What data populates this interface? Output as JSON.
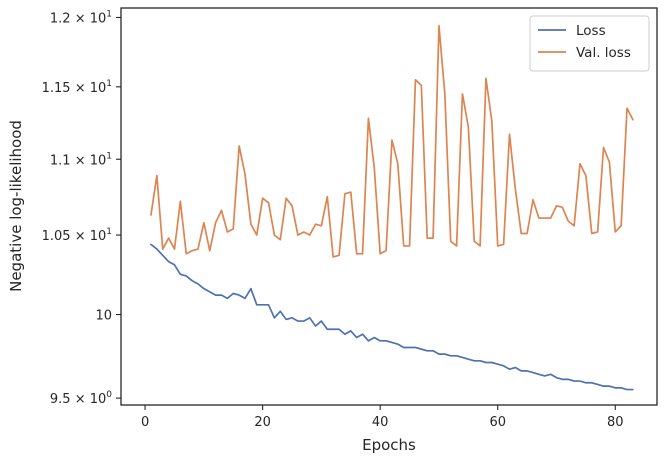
{
  "chart_data": {
    "type": "line",
    "xlabel": "Epochs",
    "ylabel": "Negative log-likelihood",
    "xlim": [
      -4.1,
      87.1
    ],
    "ylim": [
      9.46,
      12.07
    ],
    "yscale": "log",
    "grid": false,
    "legend": "top-right",
    "x_ticks": [
      {
        "value": 0,
        "label": "0"
      },
      {
        "value": 20,
        "label": "20"
      },
      {
        "value": 40,
        "label": "40"
      },
      {
        "value": 60,
        "label": "60"
      },
      {
        "value": 80,
        "label": "80"
      }
    ],
    "y_ticks": [
      {
        "value": 9.5,
        "base": "9.5",
        "exp": "0"
      },
      {
        "value": 10.0,
        "base": "10",
        "exp": "1"
      },
      {
        "value": 10.5,
        "base": "1.05",
        "exp": "1"
      },
      {
        "value": 11.0,
        "base": "1.1",
        "exp": "1"
      },
      {
        "value": 11.5,
        "base": "1.15",
        "exp": "1"
      },
      {
        "value": 12.0,
        "base": "1.2",
        "exp": "1"
      }
    ],
    "x": [
      1,
      2,
      3,
      4,
      5,
      6,
      7,
      8,
      9,
      10,
      11,
      12,
      13,
      14,
      15,
      16,
      17,
      18,
      19,
      20,
      21,
      22,
      23,
      24,
      25,
      26,
      27,
      28,
      29,
      30,
      31,
      32,
      33,
      34,
      35,
      36,
      37,
      38,
      39,
      40,
      41,
      42,
      43,
      44,
      45,
      46,
      47,
      48,
      49,
      50,
      51,
      52,
      53,
      54,
      55,
      56,
      57,
      58,
      59,
      60,
      61,
      62,
      63,
      64,
      65,
      66,
      67,
      68,
      69,
      70,
      71,
      72,
      73,
      74,
      75,
      76,
      77,
      78,
      79,
      80,
      81,
      82,
      83
    ],
    "series": [
      {
        "name": "Loss",
        "color": "#4c72b0",
        "values": [
          10.44,
          10.41,
          10.37,
          10.33,
          10.31,
          10.25,
          10.24,
          10.21,
          10.19,
          10.16,
          10.14,
          10.12,
          10.12,
          10.1,
          10.13,
          10.12,
          10.1,
          10.16,
          10.06,
          10.06,
          10.06,
          9.98,
          10.02,
          9.97,
          9.98,
          9.96,
          9.96,
          9.98,
          9.93,
          9.96,
          9.91,
          9.91,
          9.91,
          9.88,
          9.9,
          9.86,
          9.88,
          9.84,
          9.86,
          9.84,
          9.84,
          9.83,
          9.82,
          9.8,
          9.8,
          9.8,
          9.79,
          9.78,
          9.78,
          9.76,
          9.76,
          9.75,
          9.75,
          9.74,
          9.73,
          9.72,
          9.72,
          9.71,
          9.71,
          9.7,
          9.69,
          9.67,
          9.68,
          9.66,
          9.66,
          9.65,
          9.64,
          9.63,
          9.64,
          9.62,
          9.61,
          9.61,
          9.6,
          9.6,
          9.59,
          9.59,
          9.58,
          9.57,
          9.57,
          9.56,
          9.56,
          9.55,
          9.55
        ]
      },
      {
        "name": "Val. loss",
        "color": "#dd8452",
        "values": [
          10.63,
          10.89,
          10.41,
          10.48,
          10.41,
          10.72,
          10.38,
          10.4,
          10.41,
          10.58,
          10.4,
          10.58,
          10.66,
          10.52,
          10.54,
          11.09,
          10.9,
          10.57,
          10.5,
          10.74,
          10.71,
          10.5,
          10.47,
          10.74,
          10.69,
          10.5,
          10.52,
          10.5,
          10.57,
          10.56,
          10.75,
          10.36,
          10.37,
          10.77,
          10.78,
          10.38,
          10.38,
          11.28,
          10.94,
          10.38,
          10.4,
          11.13,
          10.97,
          10.43,
          10.43,
          11.55,
          11.51,
          10.48,
          10.48,
          11.94,
          11.45,
          10.46,
          10.43,
          11.45,
          11.22,
          10.46,
          10.43,
          11.56,
          11.26,
          10.43,
          10.44,
          11.17,
          10.8,
          10.51,
          10.51,
          10.73,
          10.61,
          10.61,
          10.61,
          10.69,
          10.68,
          10.59,
          10.56,
          10.97,
          10.89,
          10.51,
          10.52,
          11.08,
          10.98,
          10.52,
          10.56,
          11.35,
          11.27
        ]
      }
    ]
  }
}
